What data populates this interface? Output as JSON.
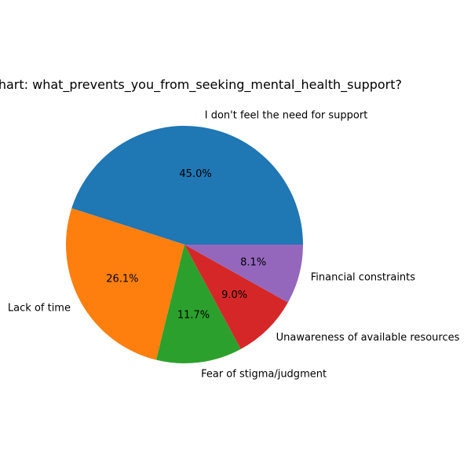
{
  "chart_data": {
    "type": "pie",
    "title": "Pie Chart: what_prevents_you_from_seeking_mental_health_support?",
    "categories": [
      "I don't feel the need for support",
      "Lack of time",
      "Fear of stigma/judgment",
      "Unawareness of available resources",
      "Financial constraints"
    ],
    "values": [
      45.0,
      26.1,
      11.7,
      9.0,
      8.1
    ],
    "value_labels": [
      "45.0%",
      "26.1%",
      "11.7%",
      "9.0%",
      "8.1%"
    ],
    "colors": [
      "#1f77b4",
      "#ff7f0e",
      "#2ca02c",
      "#d62728",
      "#9467bd"
    ],
    "start_angle": 0,
    "direction": "counterclockwise",
    "legend": "none"
  }
}
